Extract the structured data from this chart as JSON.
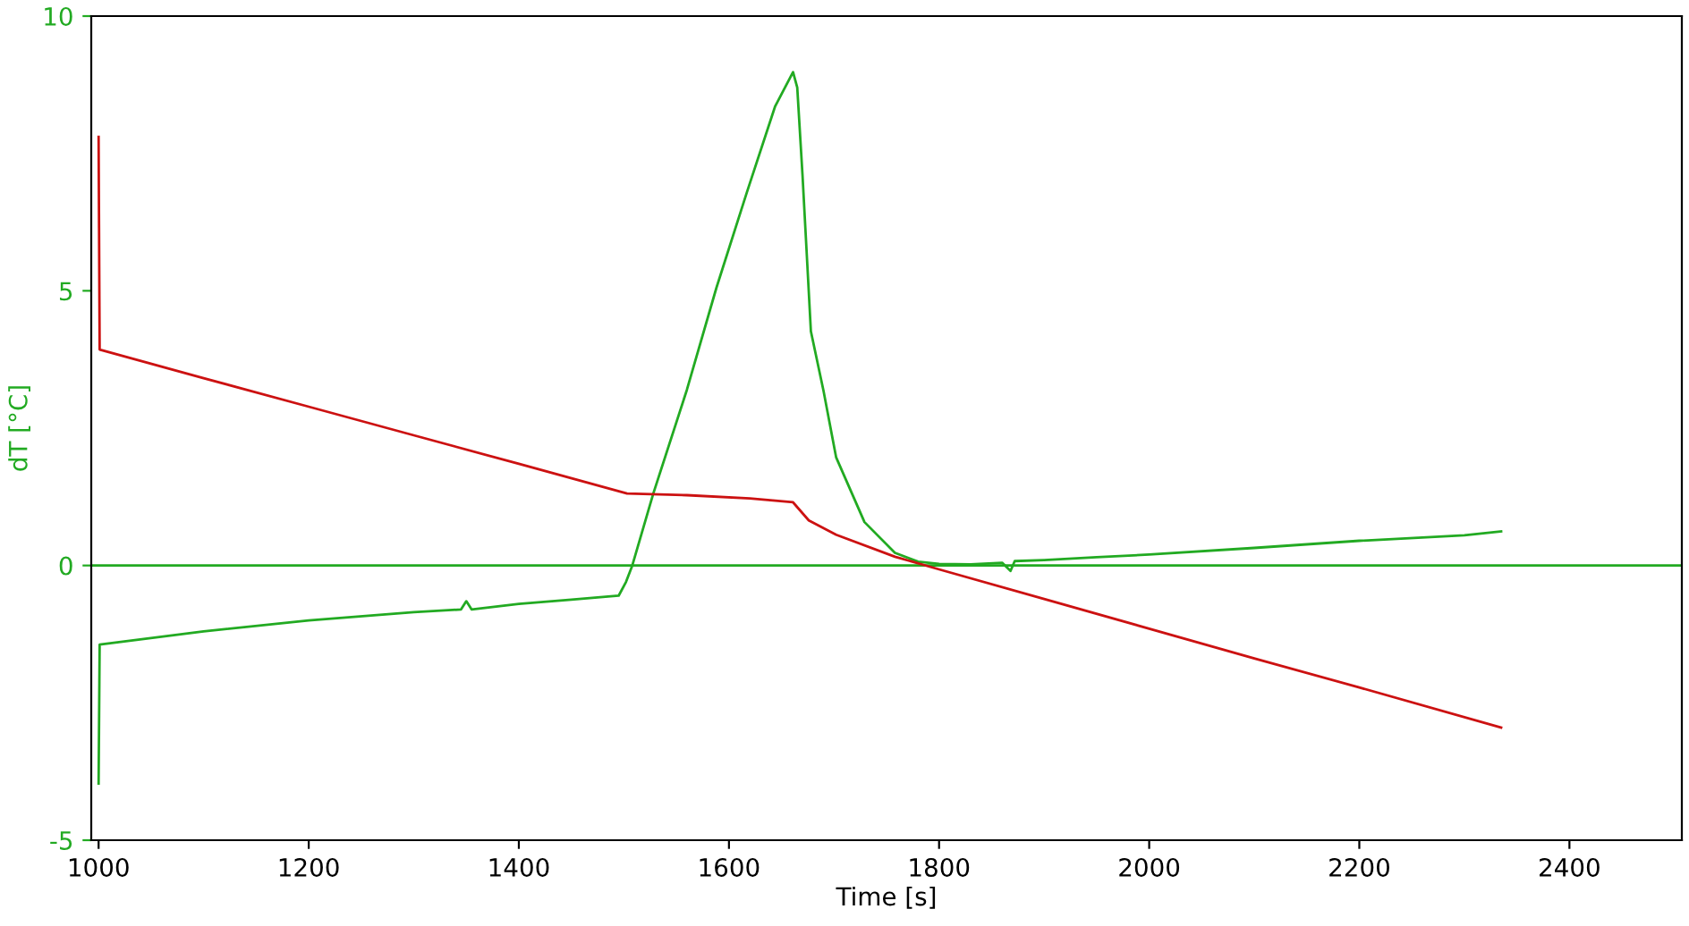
{
  "chart_data": {
    "type": "line",
    "xlabel": "Time [s]",
    "ylabel": "dT [°C]",
    "xlim": [
      993,
      2507
    ],
    "ylim": [
      -5,
      10
    ],
    "xticks": [
      1000,
      1200,
      1400,
      1600,
      1800,
      2000,
      2200,
      2400
    ],
    "yticks": [
      -5,
      0,
      5,
      10
    ],
    "grid": false,
    "legend": false,
    "marker": "none",
    "line_style": "solid",
    "series": [
      {
        "color": "#22aa22",
        "x": [
          1000,
          1001,
          1100,
          1200,
          1300,
          1345,
          1350,
          1355,
          1400,
          1450,
          1495,
          1502,
          1508,
          1528,
          1560,
          1588,
          1617,
          1644,
          1661,
          1665,
          1670,
          1678,
          1690,
          1702,
          1729,
          1758,
          1780,
          1800,
          1830,
          1860,
          1868,
          1872,
          1900,
          1950,
          2000,
          2100,
          2200,
          2300,
          2335
        ],
        "values": [
          -3.97,
          -1.44,
          -1.2,
          -1.0,
          -0.85,
          -0.8,
          -0.65,
          -0.8,
          -0.7,
          -0.62,
          -0.55,
          -0.3,
          0.0,
          1.31,
          3.2,
          5.05,
          6.79,
          8.36,
          8.98,
          8.7,
          7.11,
          4.26,
          3.18,
          1.97,
          0.79,
          0.23,
          0.07,
          0.03,
          0.02,
          0.05,
          -0.1,
          0.08,
          0.1,
          0.15,
          0.2,
          0.32,
          0.45,
          0.55,
          0.62
        ]
      },
      {
        "color": "#cc1111",
        "x": [
          1000,
          1001,
          1100,
          1200,
          1300,
          1400,
          1503,
          1560,
          1620,
          1661,
          1676,
          1702,
          1758,
          1800,
          1900,
          2000,
          2100,
          2200,
          2335
        ],
        "values": [
          7.8,
          3.93,
          3.41,
          2.89,
          2.37,
          1.85,
          1.31,
          1.28,
          1.22,
          1.15,
          0.82,
          0.56,
          0.16,
          -0.07,
          -0.61,
          -1.15,
          -1.69,
          -2.22,
          -2.95
        ]
      }
    ],
    "ref_lines": [
      {
        "axis": "y",
        "value": 0,
        "color": "#22aa22",
        "line_style": "solid"
      }
    ]
  }
}
